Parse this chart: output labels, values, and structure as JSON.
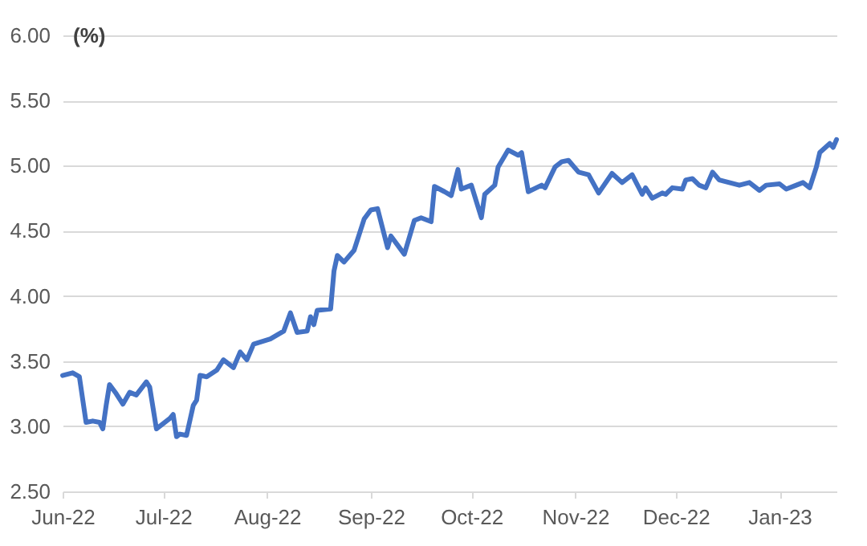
{
  "chart_data": {
    "type": "line",
    "ylabel": "(%)",
    "x": [
      "2022-06-01",
      "2022-06-04",
      "2022-06-06",
      "2022-06-08",
      "2022-06-10",
      "2022-06-12",
      "2022-06-13",
      "2022-06-14",
      "2022-06-15",
      "2022-06-17",
      "2022-06-19",
      "2022-06-21",
      "2022-06-23",
      "2022-06-26",
      "2022-06-27",
      "2022-06-29",
      "2022-07-03",
      "2022-07-04",
      "2022-07-05",
      "2022-07-06",
      "2022-07-08",
      "2022-07-10",
      "2022-07-11",
      "2022-07-12",
      "2022-07-14",
      "2022-07-17",
      "2022-07-19",
      "2022-07-22",
      "2022-07-24",
      "2022-07-26",
      "2022-07-28",
      "2022-08-02",
      "2022-08-06",
      "2022-08-08",
      "2022-08-10",
      "2022-08-13",
      "2022-08-14",
      "2022-08-15",
      "2022-08-16",
      "2022-08-20",
      "2022-08-21",
      "2022-08-22",
      "2022-08-24",
      "2022-08-27",
      "2022-08-30",
      "2022-09-01",
      "2022-09-03",
      "2022-09-06",
      "2022-09-07",
      "2022-09-11",
      "2022-09-14",
      "2022-09-16",
      "2022-09-19",
      "2022-09-20",
      "2022-09-23",
      "2022-09-25",
      "2022-09-27",
      "2022-09-28",
      "2022-10-01",
      "2022-10-04",
      "2022-10-05",
      "2022-10-08",
      "2022-10-09",
      "2022-10-12",
      "2022-10-15",
      "2022-10-16",
      "2022-10-18",
      "2022-10-22",
      "2022-10-23",
      "2022-10-26",
      "2022-10-28",
      "2022-10-30",
      "2022-11-02",
      "2022-11-05",
      "2022-11-08",
      "2022-11-12",
      "2022-11-15",
      "2022-11-18",
      "2022-11-21",
      "2022-11-22",
      "2022-11-24",
      "2022-11-27",
      "2022-11-28",
      "2022-11-30",
      "2022-12-03",
      "2022-12-04",
      "2022-12-06",
      "2022-12-08",
      "2022-12-10",
      "2022-12-12",
      "2022-12-14",
      "2022-12-17",
      "2022-12-20",
      "2022-12-23",
      "2022-12-26",
      "2022-12-28",
      "2023-01-01",
      "2023-01-03",
      "2023-01-06",
      "2023-01-08",
      "2023-01-10",
      "2023-01-12",
      "2023-01-13",
      "2023-01-16",
      "2023-01-17",
      "2023-01-18"
    ],
    "series": [
      {
        "color": "#4472c4",
        "values": [
          3.39,
          3.41,
          3.38,
          3.03,
          3.04,
          3.03,
          2.98,
          3.16,
          3.32,
          3.25,
          3.17,
          3.26,
          3.24,
          3.34,
          3.3,
          2.98,
          3.06,
          3.09,
          2.92,
          2.94,
          2.93,
          3.16,
          3.2,
          3.39,
          3.38,
          3.43,
          3.51,
          3.45,
          3.57,
          3.51,
          3.63,
          3.67,
          3.73,
          3.87,
          3.72,
          3.73,
          3.84,
          3.78,
          3.89,
          3.9,
          4.19,
          4.31,
          4.26,
          4.35,
          4.59,
          4.66,
          4.67,
          4.37,
          4.46,
          4.32,
          4.58,
          4.6,
          4.57,
          4.84,
          4.8,
          4.77,
          4.97,
          4.82,
          4.85,
          4.6,
          4.78,
          4.85,
          4.99,
          5.12,
          5.08,
          5.1,
          4.8,
          4.85,
          4.83,
          4.99,
          5.03,
          5.04,
          4.95,
          4.93,
          4.79,
          4.94,
          4.87,
          4.93,
          4.78,
          4.83,
          4.75,
          4.79,
          4.78,
          4.83,
          4.82,
          4.89,
          4.9,
          4.85,
          4.83,
          4.95,
          4.89,
          4.87,
          4.85,
          4.87,
          4.81,
          4.85,
          4.86,
          4.82,
          4.85,
          4.87,
          4.83,
          4.99,
          5.1,
          5.17,
          5.14,
          5.2
        ]
      }
    ],
    "xlim": [
      "2022-06-01",
      "2023-01-18"
    ],
    "xticks": [
      {
        "value": "2022-06-01",
        "label": "Jun-22"
      },
      {
        "value": "2022-07-01",
        "label": "Jul-22"
      },
      {
        "value": "2022-08-01",
        "label": "Aug-22"
      },
      {
        "value": "2022-09-01",
        "label": "Sep-22"
      },
      {
        "value": "2022-10-01",
        "label": "Oct-22"
      },
      {
        "value": "2022-11-01",
        "label": "Nov-22"
      },
      {
        "value": "2022-12-01",
        "label": "Dec-22"
      },
      {
        "value": "2023-01-01",
        "label": "Jan-23"
      }
    ],
    "ylim": [
      2.5,
      6.0
    ],
    "yticks": [
      {
        "value": 2.5,
        "label": "2.50"
      },
      {
        "value": 3.0,
        "label": "3.00"
      },
      {
        "value": 3.5,
        "label": "3.50"
      },
      {
        "value": 4.0,
        "label": "4.00"
      },
      {
        "value": 4.5,
        "label": "4.50"
      },
      {
        "value": 5.0,
        "label": "5.00"
      },
      {
        "value": 5.5,
        "label": "5.50"
      },
      {
        "value": 6.0,
        "label": "6.00"
      }
    ],
    "grid": "y",
    "marker": "none",
    "line_style": "solid"
  }
}
